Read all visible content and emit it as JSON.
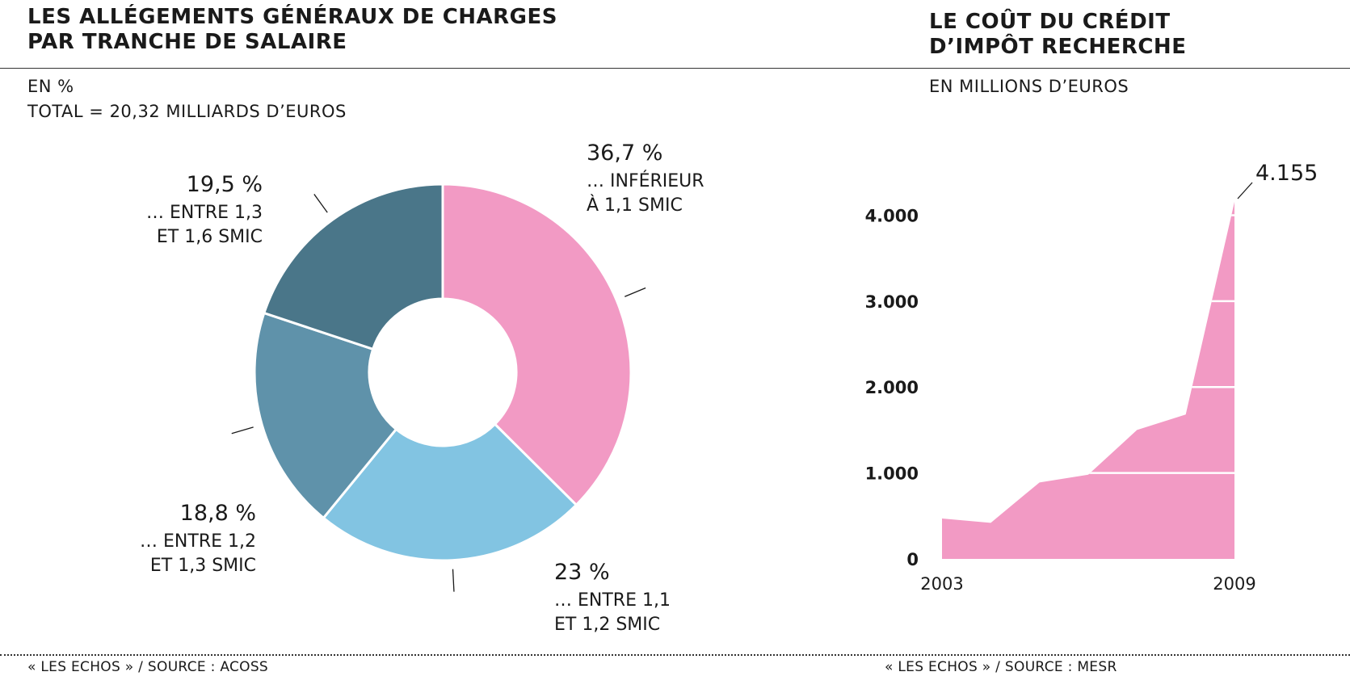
{
  "left_panel": {
    "title": "LES ALLÉGEMENTS GÉNÉRAUX DE CHARGES\nPAR TRANCHE DE SALAIRE",
    "unit": "EN %",
    "total": "TOTAL = 20,32 MILLIARDS D’EUROS",
    "source": "« LES ECHOS » / SOURCE : ACOSS"
  },
  "right_panel": {
    "title": "LE COÛT DU CRÉDIT\nD’IMPÔT RECHERCHE",
    "unit": "EN MILLIONS D’EUROS",
    "source": "« LES ECHOS » / SOURCE : MESR"
  },
  "chart_data": [
    {
      "type": "pie",
      "donut": true,
      "slices": [
        {
          "value": 36.7,
          "label_value": "36,7 %",
          "label_lines": [
            "… INFÉRIEUR",
            "À 1,1 SMIC"
          ],
          "color": "#f29ac4"
        },
        {
          "value": 23,
          "label_value": "23 %",
          "label_lines": [
            "… ENTRE 1,1",
            "ET 1,2 SMIC"
          ],
          "color": "#82c4e2"
        },
        {
          "value": 18.8,
          "label_value": "18,8 %",
          "label_lines": [
            "… ENTRE 1,2",
            "ET 1,3 SMIC"
          ],
          "color": "#5f92aa"
        },
        {
          "value": 19.5,
          "label_value": "19,5 %",
          "label_lines": [
            "… ENTRE 1,3",
            "ET 1,6 SMIC"
          ],
          "color": "#4a7689"
        }
      ]
    },
    {
      "type": "area",
      "color": "#f29ac4",
      "x": [
        2003,
        2004,
        2005,
        2006,
        2007,
        2008,
        2009
      ],
      "values": [
        470,
        420,
        890,
        980,
        1500,
        1680,
        4155
      ],
      "ylim": [
        0,
        4155
      ],
      "yticks": [
        0,
        1000,
        2000,
        3000,
        4000
      ],
      "ytick_labels": [
        "0",
        "1.000",
        "2.000",
        "3.000",
        "4.000"
      ],
      "xtick_labels": [
        "2003",
        "2009"
      ],
      "annotation": "4.155",
      "grid": true
    }
  ]
}
